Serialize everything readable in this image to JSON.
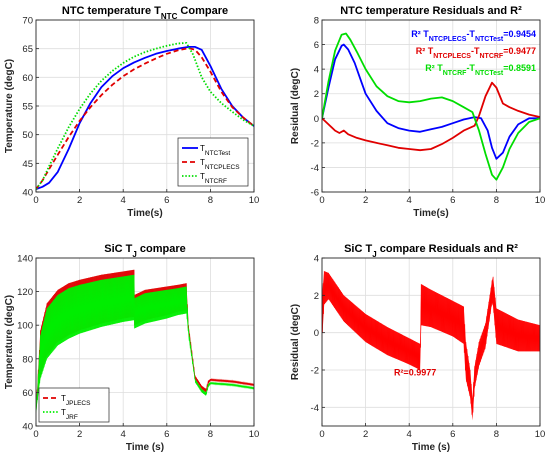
{
  "chart_data": [
    {
      "type": "line",
      "title": "NTC temperature T",
      "title_sub": "NTC",
      "title_tail": " Compare",
      "xlabel": "Time(s)",
      "ylabel": "Temperature (degC)",
      "xlim": [
        0,
        10
      ],
      "ylim": [
        40,
        70
      ],
      "xticks": [
        "0",
        "2",
        "4",
        "6",
        "8",
        "10"
      ],
      "yticks": [
        "40",
        "45",
        "50",
        "55",
        "60",
        "65",
        "70"
      ],
      "grid": true,
      "legend_position": "bottom-right",
      "series": [
        {
          "legend_main": "T",
          "legend_sub": "NTCTest",
          "color": "#0000ff",
          "style": "solid",
          "x": [
            0,
            0.3,
            0.6,
            1.0,
            1.5,
            2.0,
            2.5,
            3.0,
            3.5,
            4.0,
            4.5,
            5.0,
            5.5,
            6.0,
            6.5,
            7.0,
            7.3,
            7.6,
            8.0,
            8.5,
            9.0,
            9.5,
            10.0
          ],
          "y": [
            40.5,
            40.9,
            41.6,
            43.5,
            47.5,
            52.0,
            55.5,
            58.3,
            60.2,
            61.6,
            62.6,
            63.4,
            64.1,
            64.6,
            65.0,
            65.3,
            65.3,
            64.8,
            62.0,
            58.0,
            55.0,
            53.0,
            51.5
          ]
        },
        {
          "legend_main": "T",
          "legend_sub": "NTCPLECS",
          "color": "#e00000",
          "style": "dashed",
          "x": [
            0,
            0.3,
            0.6,
            1.0,
            1.5,
            2.0,
            2.5,
            3.0,
            3.5,
            4.0,
            4.5,
            5.0,
            5.5,
            6.0,
            6.5,
            7.0,
            7.3,
            7.6,
            8.0,
            8.5,
            9.0,
            9.5,
            10.0
          ],
          "y": [
            40.5,
            42.0,
            44.0,
            46.5,
            49.6,
            52.4,
            54.8,
            56.9,
            58.7,
            60.2,
            61.4,
            62.4,
            63.3,
            64.1,
            64.7,
            65.1,
            64.8,
            63.5,
            61.0,
            57.5,
            54.8,
            53.0,
            51.5
          ]
        },
        {
          "legend_main": "T",
          "legend_sub": "NTCRF",
          "color": "#00dd00",
          "style": "dotted",
          "x": [
            0,
            0.3,
            0.6,
            1.0,
            1.5,
            2.0,
            2.5,
            3.0,
            3.5,
            4.0,
            4.5,
            5.0,
            5.5,
            6.0,
            6.5,
            6.9,
            7.2,
            7.6,
            8.0,
            8.5,
            9.0,
            9.5,
            10.0
          ],
          "y": [
            40.5,
            42.0,
            44.5,
            47.6,
            51.3,
            54.5,
            57.2,
            59.4,
            61.1,
            62.5,
            63.6,
            64.4,
            65.0,
            65.5,
            65.9,
            66.0,
            64.0,
            60.0,
            57.5,
            55.5,
            54.0,
            52.6,
            51.5
          ]
        }
      ]
    },
    {
      "type": "line",
      "title": "NTC temperature Residuals and R²",
      "xlabel": "Time(s)",
      "ylabel": "Residual (degC)",
      "xlim": [
        0,
        10
      ],
      "ylim": [
        -6,
        8
      ],
      "xticks": [
        "0",
        "2",
        "4",
        "6",
        "8",
        "10"
      ],
      "yticks": [
        "-6",
        "-4",
        "-2",
        "0",
        "2",
        "4",
        "6",
        "8"
      ],
      "grid": true,
      "annotations": [
        {
          "pre": "R² T",
          "s1": "NTCPLECS",
          "mid": "-T",
          "s2": "NTCTest",
          "post": "=0.9454",
          "color": "#0000ff"
        },
        {
          "pre": "R² T",
          "s1": "NTCPLECS",
          "mid": "-T",
          "s2": "NTCRF",
          "post": "=0.9477",
          "color": "#e00000"
        },
        {
          "pre": "R² T",
          "s1": "NTCRF",
          "mid": "-T",
          "s2": "NTCTest",
          "post": "=0.8591",
          "color": "#00dd00"
        }
      ],
      "series": [
        {
          "color": "#0000ff",
          "x": [
            0,
            0.3,
            0.6,
            0.9,
            1.0,
            1.2,
            1.5,
            1.8,
            2.0,
            2.5,
            3.0,
            3.5,
            4.0,
            4.5,
            5.0,
            5.5,
            6.0,
            6.5,
            7.0,
            7.3,
            7.6,
            7.8,
            8.0,
            8.3,
            8.6,
            9.0,
            9.5,
            10.0
          ],
          "y": [
            0,
            2.5,
            4.8,
            5.9,
            6.0,
            5.6,
            4.5,
            3.0,
            2.0,
            0.6,
            -0.4,
            -0.8,
            -1.0,
            -1.1,
            -0.9,
            -0.7,
            -0.4,
            -0.1,
            0.1,
            0.0,
            -1.0,
            -2.4,
            -3.3,
            -2.8,
            -1.5,
            -0.5,
            0.0,
            0.0
          ]
        },
        {
          "color": "#e00000",
          "x": [
            0,
            0.3,
            0.6,
            0.8,
            1.0,
            1.2,
            1.6,
            2.0,
            2.5,
            3.0,
            3.5,
            4.0,
            4.5,
            5.0,
            5.5,
            6.0,
            6.5,
            7.0,
            7.2,
            7.5,
            7.8,
            8.0,
            8.3,
            8.6,
            9.0,
            9.5,
            10.0
          ],
          "y": [
            0,
            -0.5,
            -1.0,
            -1.2,
            -1.0,
            -1.3,
            -1.6,
            -1.8,
            -2.0,
            -2.2,
            -2.4,
            -2.5,
            -2.6,
            -2.5,
            -2.1,
            -1.6,
            -1.0,
            -0.6,
            0.2,
            1.8,
            2.9,
            2.5,
            1.2,
            0.9,
            0.6,
            0.3,
            0.1
          ]
        },
        {
          "color": "#00dd00",
          "x": [
            0,
            0.3,
            0.6,
            0.9,
            1.1,
            1.3,
            1.6,
            2.0,
            2.5,
            3.0,
            3.5,
            4.0,
            4.5,
            5.0,
            5.5,
            6.0,
            6.5,
            6.9,
            7.2,
            7.5,
            7.8,
            8.0,
            8.3,
            8.6,
            9.0,
            9.5,
            10.0
          ],
          "y": [
            0,
            3.0,
            5.5,
            6.8,
            6.9,
            6.4,
            5.4,
            4.0,
            2.6,
            1.8,
            1.4,
            1.3,
            1.4,
            1.6,
            1.7,
            1.4,
            0.9,
            0.5,
            -1.0,
            -2.9,
            -4.6,
            -5.0,
            -4.0,
            -2.5,
            -1.2,
            -0.3,
            0.0
          ]
        }
      ]
    },
    {
      "type": "line",
      "title": "SiC T",
      "title_sub": "J",
      "title_tail": " compare",
      "xlabel": "Time (s)",
      "ylabel": "Temperature (degC)",
      "xlim": [
        0,
        10
      ],
      "ylim": [
        40,
        140
      ],
      "xticks": [
        "0",
        "2",
        "4",
        "6",
        "8",
        "10"
      ],
      "yticks": [
        "40",
        "60",
        "80",
        "100",
        "120",
        "140"
      ],
      "grid": true,
      "legend_position": "bottom-left",
      "series": [
        {
          "legend_main": "T",
          "legend_sub": "JPLECS",
          "color": "#e00000",
          "style": "dashed",
          "x": [
            0,
            0.2,
            0.5,
            1.0,
            1.5,
            2.0,
            3.0,
            4.0,
            4.5,
            4.51,
            5.0,
            6.0,
            6.5,
            6.9,
            7.0,
            7.3,
            7.6,
            7.8,
            7.9,
            8.0,
            9.0,
            10.0
          ],
          "y": [
            50,
            97,
            113,
            121,
            125,
            127,
            130,
            132,
            133,
            118,
            121,
            123,
            124,
            125,
            100,
            70,
            64,
            62,
            67,
            68,
            67,
            65
          ],
          "y_min": [
            50,
            70,
            82,
            90,
            94,
            97,
            101,
            104,
            105,
            100,
            103,
            106,
            108,
            109,
            95,
            68,
            62,
            60,
            65,
            67,
            66,
            64
          ]
        },
        {
          "legend_main": "T",
          "legend_sub": "JRF",
          "color": "#00ee00",
          "style": "dotted",
          "x": [
            0,
            0.2,
            0.5,
            1.0,
            1.5,
            2.0,
            3.0,
            4.0,
            4.5,
            4.51,
            5.0,
            6.0,
            6.5,
            6.9,
            7.0,
            7.3,
            7.6,
            7.8,
            7.9,
            8.0,
            9.0,
            10.0
          ],
          "y": [
            48,
            94,
            110,
            118,
            122,
            124,
            127,
            129,
            130,
            116,
            119,
            121,
            122,
            123,
            98,
            68,
            62,
            60,
            65,
            66,
            65,
            63
          ],
          "y_min": [
            48,
            68,
            80,
            88,
            92,
            95,
            99,
            102,
            103,
            98,
            101,
            104,
            106,
            107,
            93,
            66,
            60,
            58,
            63,
            65,
            64,
            62
          ]
        }
      ]
    },
    {
      "type": "line",
      "title": "SiC T",
      "title_sub": "J",
      "title_tail": " compare Residuals and R²",
      "xlabel": "Time (s)",
      "ylabel": "Residual (degC)",
      "xlim": [
        0,
        10
      ],
      "ylim": [
        -5,
        4
      ],
      "xticks": [
        "0",
        "2",
        "4",
        "6",
        "8",
        "10"
      ],
      "yticks": [
        "-4",
        "-2",
        "0",
        "2",
        "4"
      ],
      "grid": true,
      "annotations": [
        {
          "text": "R²=0.9977",
          "color": "#e00000"
        }
      ],
      "series": [
        {
          "color": "#ff0000",
          "x": [
            0,
            0.1,
            0.3,
            1.0,
            2.0,
            3.0,
            4.0,
            4.5,
            4.55,
            5.0,
            6.0,
            6.5,
            6.6,
            6.8,
            6.9,
            7.0,
            7.2,
            7.5,
            7.8,
            7.85,
            8.0,
            9.0,
            10.0
          ],
          "y": [
            2.0,
            3.3,
            3.2,
            2.0,
            1.0,
            0.3,
            -0.3,
            -0.6,
            2.6,
            2.3,
            1.7,
            1.4,
            -0.5,
            -2.0,
            -3.5,
            -1.8,
            -0.5,
            0.5,
            2.8,
            3.0,
            1.3,
            0.7,
            0.4
          ],
          "y_min": [
            -0.5,
            1.5,
            1.8,
            0.6,
            -0.5,
            -1.2,
            -1.7,
            -2.0,
            0.4,
            0.3,
            -0.2,
            -0.6,
            -2.5,
            -3.5,
            -4.7,
            -3.0,
            -1.8,
            -0.8,
            1.6,
            1.4,
            -0.6,
            -1.0,
            -1.0
          ]
        }
      ]
    }
  ]
}
